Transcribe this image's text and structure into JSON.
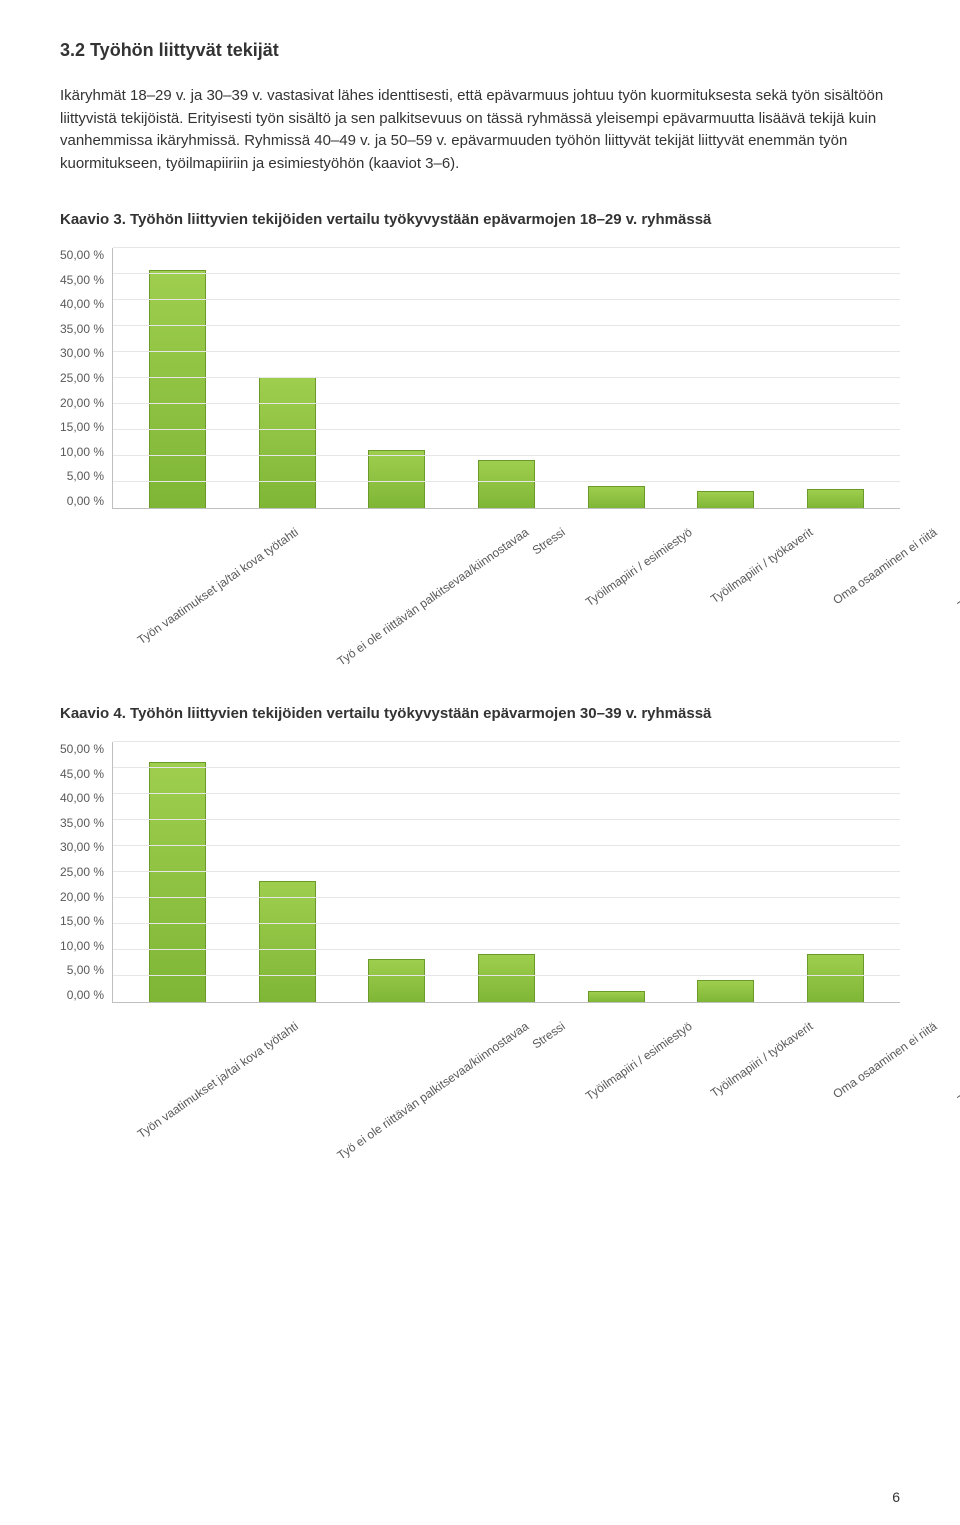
{
  "section": {
    "heading": "3.2 Työhön liittyvät tekijät"
  },
  "paragraph": "Ikäryhmät 18–29 v. ja 30–39 v. vastasivat lähes identtisesti, että epävarmuus johtuu työn kuormituksesta sekä työn sisältöön liittyvistä tekijöistä. Erityisesti työn sisältö ja sen palkitsevuus on tässä ryhmässä yleisempi epävarmuutta lisäävä tekijä kuin vanhemmissa ikäryhmissä. Ryhmissä 40–49 v. ja 50–59 v. epävarmuuden työhön liittyvät tekijät liittyvät enemmän työn kuormitukseen, työilmapiiriin ja esimiestyöhön (kaaviot 3–6).",
  "chart3": {
    "title": "Kaavio 3. Työhön liittyvien tekijöiden vertailu työkyvystään epävarmojen 18–29 v. ryhmässä",
    "type": "bar",
    "ylim": [
      0,
      50
    ],
    "ytick_step": 5,
    "yticks": [
      "0,00 %",
      "5,00 %",
      "10,00 %",
      "15,00 %",
      "20,00 %",
      "25,00 %",
      "30,00 %",
      "35,00 %",
      "40,00 %",
      "45,00 %",
      "50,00 %"
    ],
    "categories": [
      "Työn vaatimukset ja/tai kova työtahti",
      "Työ ei ole riittävän palkitsevaa/kiinnostavaa",
      "Stressi",
      "Työilmapiiri / esimiestyö",
      "Työilmapiiri / työkaverit",
      "Oma osaaminen ei riitä",
      "Työpaikan fyysiset tekijät"
    ],
    "values": [
      45.5,
      25.0,
      11.0,
      9.0,
      4.0,
      3.0,
      3.5
    ],
    "bar_gradient_top": "#9fce4e",
    "bar_gradient_bottom": "#7fb636",
    "bar_border": "#6a9a2a",
    "grid_color": "#e6e6e6",
    "axis_color": "#bfbfbf",
    "label_color": "#595959"
  },
  "chart4": {
    "title": "Kaavio 4. Työhön liittyvien tekijöiden vertailu työkyvystään epävarmojen 30–39 v. ryhmässä",
    "type": "bar",
    "ylim": [
      0,
      50
    ],
    "ytick_step": 5,
    "yticks": [
      "0,00 %",
      "5,00 %",
      "10,00 %",
      "15,00 %",
      "20,00 %",
      "25,00 %",
      "30,00 %",
      "35,00 %",
      "40,00 %",
      "45,00 %",
      "50,00 %"
    ],
    "categories": [
      "Työn vaatimukset ja/tai kova työtahti",
      "Työ ei ole riittävän palkitsevaa/kiinnostavaa",
      "Stressi",
      "Työilmapiiri / esimiestyö",
      "Työilmapiiri / työkaverit",
      "Oma osaaminen ei riitä",
      "Työpaikan fyysiset tekijät"
    ],
    "values": [
      46.0,
      23.0,
      8.0,
      9.0,
      2.0,
      4.0,
      9.0
    ],
    "bar_gradient_top": "#9fce4e",
    "bar_gradient_bottom": "#7fb636",
    "bar_border": "#6a9a2a",
    "grid_color": "#e6e6e6",
    "axis_color": "#bfbfbf",
    "label_color": "#595959"
  },
  "page_number": "6"
}
